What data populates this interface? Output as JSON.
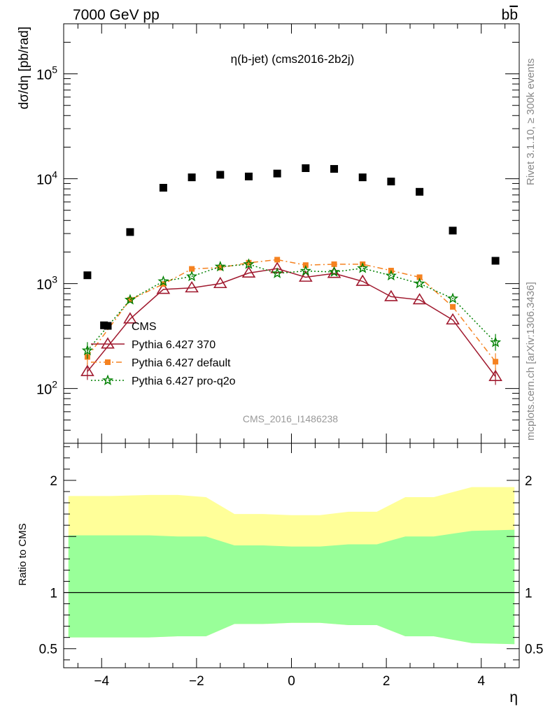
{
  "header": {
    "left": "7000 GeV pp",
    "right_base": "b",
    "right_bar": "b"
  },
  "side_text": {
    "rivet": "Rivet 3.1.10, ≥ 300k events",
    "mcplots": "mcplots.cern.ch [arXiv:1306.3436]"
  },
  "colors": {
    "data": "#000000",
    "p370": "#a0192e",
    "pdefault": "#f58220",
    "pq2o": "#008000",
    "band_outer": "#ffff99",
    "band_inner": "#99ff99"
  },
  "chart_data": [
    {
      "type": "scatter",
      "title": "η(b-jet) (cms2016-2b2j)",
      "ylabel": "dσ/dη [pb/rad]",
      "yscale": "log",
      "xlim": [
        -4.8,
        4.8
      ],
      "ylim": [
        30,
        300000
      ],
      "watermark": "CMS_2016_I1486238",
      "y_tick_labels": [
        {
          "base": "10",
          "exp": "2",
          "value": 100
        },
        {
          "base": "10",
          "exp": "3",
          "value": 1000
        },
        {
          "base": "10",
          "exp": "4",
          "value": 10000
        },
        {
          "base": "10",
          "exp": "5",
          "value": 100000
        }
      ],
      "x": [
        -4.3,
        -3.4,
        -2.7,
        -2.1,
        -1.5,
        -0.9,
        -0.3,
        0.3,
        0.9,
        1.5,
        2.1,
        2.7,
        3.4,
        4.3
      ],
      "series": [
        {
          "name": "CMS",
          "key": "data",
          "x": [
            -4.3,
            -3.4,
            -2.7,
            -2.1,
            -1.5,
            -0.9,
            -0.3,
            0.3,
            0.9,
            1.5,
            2.1,
            2.7,
            3.4,
            4.3
          ],
          "y": [
            1200,
            3100,
            8200,
            10300,
            10900,
            10500,
            11200,
            12600,
            12400,
            10300,
            9400,
            7500,
            3200,
            1650
          ],
          "extra": {
            "x": -3.95,
            "y": 400
          }
        },
        {
          "name": "Pythia 6.427 370",
          "key": "p370",
          "y": [
            145,
            460,
            880,
            910,
            1000,
            1260,
            1390,
            1150,
            1250,
            1050,
            750,
            700,
            450,
            130
          ]
        },
        {
          "name": "Pythia 6.427 default",
          "key": "pdefault",
          "y": [
            200,
            700,
            990,
            1380,
            1420,
            1580,
            1690,
            1500,
            1530,
            1530,
            1330,
            1150,
            600,
            180
          ]
        },
        {
          "name": "Pythia 6.427 pro-q2o",
          "key": "pq2o",
          "y": [
            230,
            700,
            1050,
            1170,
            1450,
            1530,
            1250,
            1320,
            1290,
            1400,
            1190,
            1000,
            720,
            275
          ]
        }
      ]
    },
    {
      "type": "area",
      "ylabel": "Ratio to CMS",
      "xlabel": "η",
      "xlim": [
        -4.8,
        4.8
      ],
      "ylim": [
        0.33,
        2.33
      ],
      "x_ticks": [
        -4,
        -2,
        0,
        2,
        4
      ],
      "x_tick_labels": [
        "−4",
        "−2",
        "0",
        "2",
        "4"
      ],
      "y_ticks": [
        0.5,
        1,
        2
      ],
      "y_tick_labels": [
        "0.5",
        "1",
        "2"
      ],
      "bins": [
        -4.7,
        -3.8,
        -3.0,
        -2.4,
        -1.8,
        -1.2,
        -0.6,
        0.0,
        0.6,
        1.2,
        1.8,
        2.4,
        3.0,
        3.8,
        4.7
      ],
      "outer_band": {
        "high": [
          1.86,
          1.86,
          1.87,
          1.87,
          1.85,
          1.7,
          1.7,
          1.69,
          1.69,
          1.72,
          1.72,
          1.85,
          1.85,
          1.94,
          1.94
        ],
        "low": [
          0.6,
          0.6,
          0.6,
          0.61,
          0.61,
          0.72,
          0.72,
          0.73,
          0.73,
          0.71,
          0.71,
          0.61,
          0.61,
          0.55,
          0.54
        ]
      },
      "inner_band": {
        "high": [
          1.51,
          1.51,
          1.51,
          1.5,
          1.5,
          1.42,
          1.42,
          1.41,
          1.41,
          1.43,
          1.43,
          1.5,
          1.5,
          1.55,
          1.56
        ],
        "low": [
          0.6,
          0.6,
          0.6,
          0.61,
          0.61,
          0.72,
          0.72,
          0.73,
          0.73,
          0.71,
          0.71,
          0.61,
          0.61,
          0.55,
          0.54
        ]
      }
    }
  ]
}
